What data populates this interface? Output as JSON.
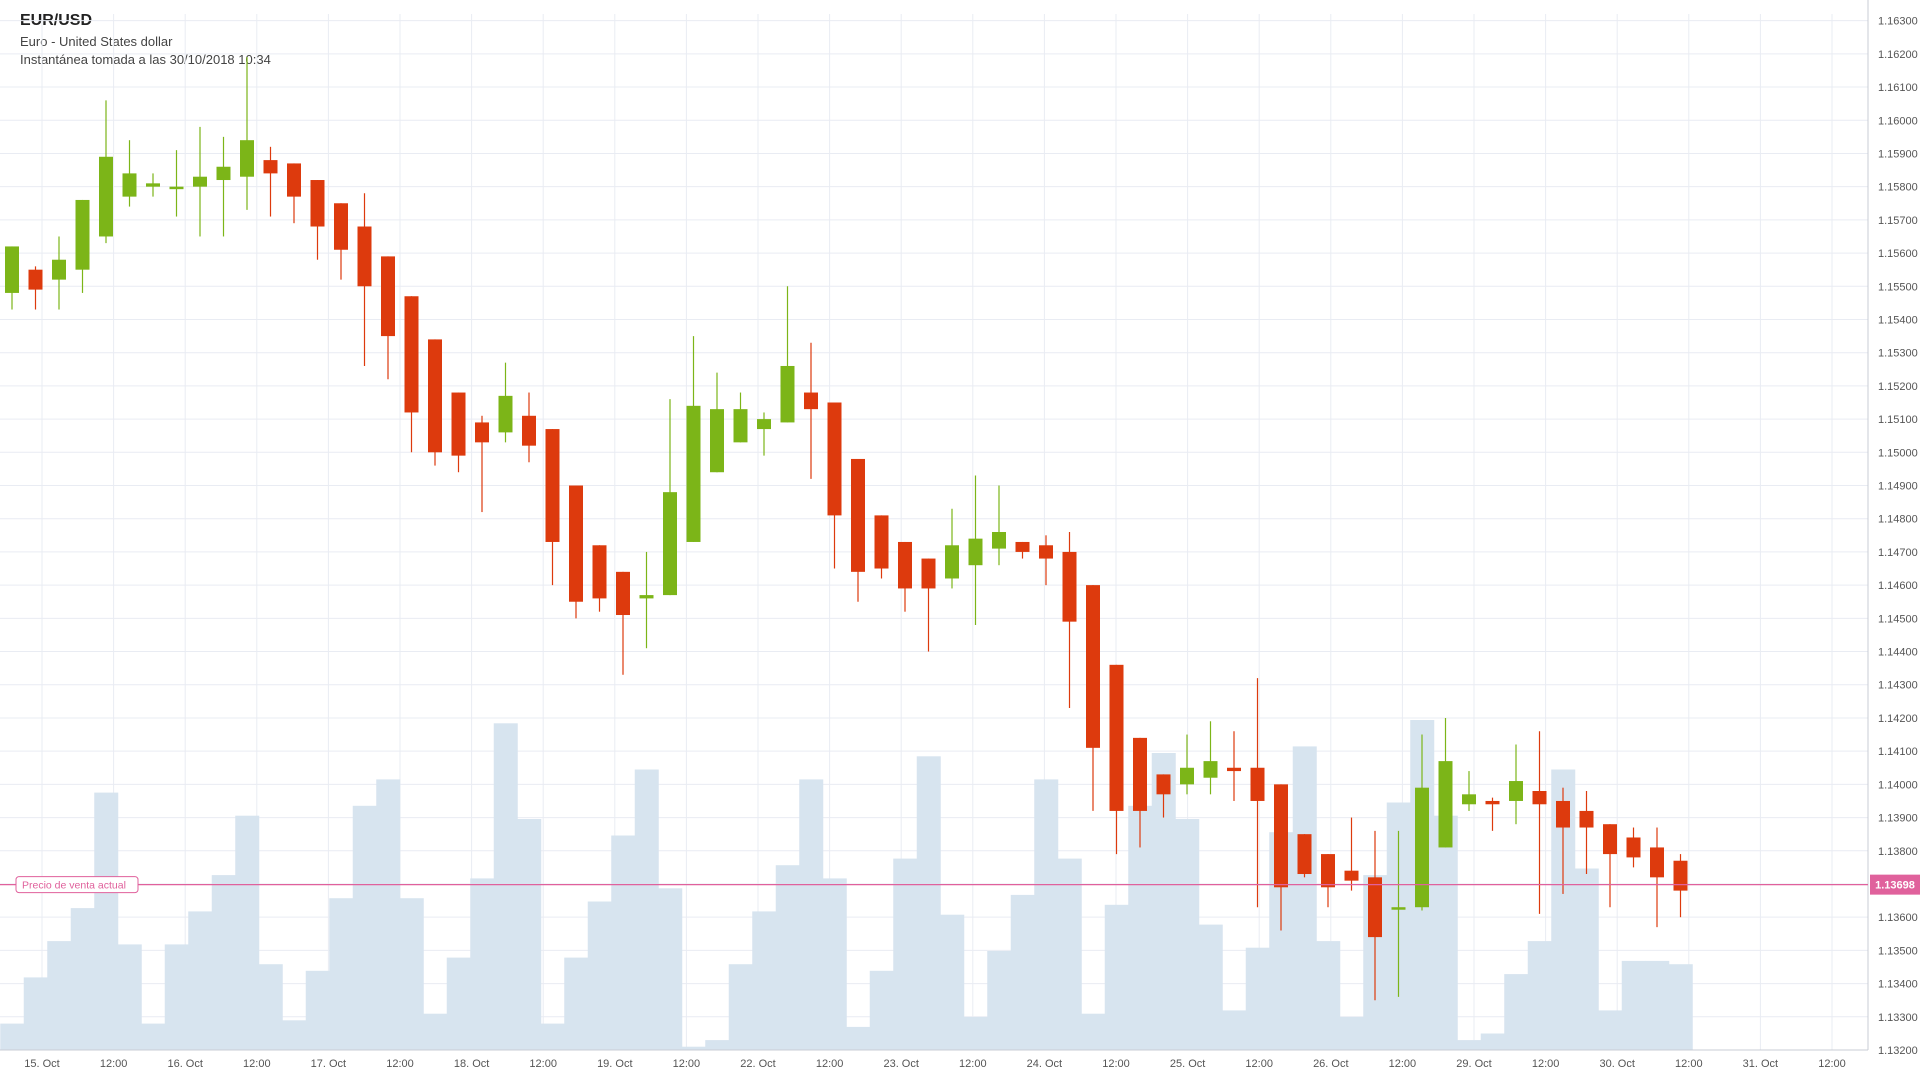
{
  "header": {
    "symbol": "EUR/USD",
    "name": "Euro - United States dollar",
    "snapshot": "Instantánea tomada a las 30/10/2018 10:34"
  },
  "colors": {
    "up": "#7cb518",
    "down": "#dd3a0d",
    "volume": "#d7e4ef",
    "grid": "#e9ecf3",
    "price_line": "#e0619c",
    "axis_text": "#555555"
  },
  "chart_data": {
    "type": "candlestick",
    "instrument": "EUR/USD",
    "ylim": [
      1.132,
      1.1632
    ],
    "y_ticks": [
      "1.16300",
      "1.16200",
      "1.16100",
      "1.16000",
      "1.15900",
      "1.15800",
      "1.15700",
      "1.15600",
      "1.15500",
      "1.15400",
      "1.15300",
      "1.15200",
      "1.15100",
      "1.15000",
      "1.14900",
      "1.14800",
      "1.14700",
      "1.14600",
      "1.14500",
      "1.14400",
      "1.14300",
      "1.14200",
      "1.14100",
      "1.14000",
      "1.13900",
      "1.13800",
      "1.13700",
      "1.13600",
      "1.13500",
      "1.13400",
      "1.13300",
      "1.13200"
    ],
    "x_ticks": [
      "15. Oct",
      "12:00",
      "16. Oct",
      "12:00",
      "17. Oct",
      "12:00",
      "18. Oct",
      "12:00",
      "19. Oct",
      "12:00",
      "22. Oct",
      "12:00",
      "23. Oct",
      "12:00",
      "24. Oct",
      "12:00",
      "25. Oct",
      "12:00",
      "26. Oct",
      "12:00",
      "29. Oct",
      "12:00",
      "30. Oct",
      "12:00",
      "31. Oct",
      "12:00"
    ],
    "current_price": {
      "label": "Precio de venta actual",
      "value": 1.13698,
      "text": "1.13698"
    },
    "grid": true,
    "candles": [
      {
        "o": 1.1548,
        "h": 1.1562,
        "l": 1.1543,
        "c": 1.1562
      },
      {
        "o": 1.1555,
        "h": 1.1556,
        "l": 1.1543,
        "c": 1.1549
      },
      {
        "o": 1.1552,
        "h": 1.1565,
        "l": 1.1543,
        "c": 1.1558
      },
      {
        "o": 1.1555,
        "h": 1.1576,
        "l": 1.1548,
        "c": 1.1576
      },
      {
        "o": 1.1565,
        "h": 1.1606,
        "l": 1.1563,
        "c": 1.1589
      },
      {
        "o": 1.1577,
        "h": 1.1594,
        "l": 1.1574,
        "c": 1.1584
      },
      {
        "o": 1.158,
        "h": 1.1584,
        "l": 1.1577,
        "c": 1.1581
      },
      {
        "o": 1.158,
        "h": 1.1591,
        "l": 1.1571,
        "c": 1.158
      },
      {
        "o": 1.158,
        "h": 1.1598,
        "l": 1.1565,
        "c": 1.1583
      },
      {
        "o": 1.1582,
        "h": 1.1595,
        "l": 1.1565,
        "c": 1.1586
      },
      {
        "o": 1.1583,
        "h": 1.1619,
        "l": 1.1573,
        "c": 1.1594
      },
      {
        "o": 1.1588,
        "h": 1.1592,
        "l": 1.1571,
        "c": 1.1584
      },
      {
        "o": 1.1587,
        "h": 1.1587,
        "l": 1.1569,
        "c": 1.1577
      },
      {
        "o": 1.1582,
        "h": 1.1582,
        "l": 1.1558,
        "c": 1.1568
      },
      {
        "o": 1.1575,
        "h": 1.1575,
        "l": 1.1552,
        "c": 1.1561
      },
      {
        "o": 1.1568,
        "h": 1.1578,
        "l": 1.1526,
        "c": 1.155
      },
      {
        "o": 1.1559,
        "h": 1.1559,
        "l": 1.1522,
        "c": 1.1535
      },
      {
        "o": 1.1547,
        "h": 1.1547,
        "l": 1.15,
        "c": 1.1512
      },
      {
        "o": 1.1534,
        "h": 1.1534,
        "l": 1.1496,
        "c": 1.15
      },
      {
        "o": 1.1518,
        "h": 1.1518,
        "l": 1.1494,
        "c": 1.1499
      },
      {
        "o": 1.1509,
        "h": 1.1511,
        "l": 1.1482,
        "c": 1.1503
      },
      {
        "o": 1.1506,
        "h": 1.1527,
        "l": 1.1503,
        "c": 1.1517
      },
      {
        "o": 1.1511,
        "h": 1.1518,
        "l": 1.1497,
        "c": 1.1502
      },
      {
        "o": 1.1507,
        "h": 1.1507,
        "l": 1.146,
        "c": 1.1473
      },
      {
        "o": 1.149,
        "h": 1.149,
        "l": 1.145,
        "c": 1.1455
      },
      {
        "o": 1.1472,
        "h": 1.1472,
        "l": 1.1452,
        "c": 1.1456
      },
      {
        "o": 1.1464,
        "h": 1.1464,
        "l": 1.1433,
        "c": 1.1451
      },
      {
        "o": 1.1456,
        "h": 1.147,
        "l": 1.1441,
        "c": 1.1457
      },
      {
        "o": 1.1457,
        "h": 1.1516,
        "l": 1.1457,
        "c": 1.1488
      },
      {
        "o": 1.1473,
        "h": 1.1535,
        "l": 1.1473,
        "c": 1.1514
      },
      {
        "o": 1.1494,
        "h": 1.1524,
        "l": 1.1494,
        "c": 1.1513
      },
      {
        "o": 1.1503,
        "h": 1.1518,
        "l": 1.1503,
        "c": 1.1513
      },
      {
        "o": 1.1507,
        "h": 1.1512,
        "l": 1.1499,
        "c": 1.151
      },
      {
        "o": 1.1509,
        "h": 1.155,
        "l": 1.1509,
        "c": 1.1526
      },
      {
        "o": 1.1518,
        "h": 1.1533,
        "l": 1.1492,
        "c": 1.1513
      },
      {
        "o": 1.1515,
        "h": 1.1515,
        "l": 1.1465,
        "c": 1.1481
      },
      {
        "o": 1.1498,
        "h": 1.1498,
        "l": 1.1455,
        "c": 1.1464
      },
      {
        "o": 1.1481,
        "h": 1.1481,
        "l": 1.1462,
        "c": 1.1465
      },
      {
        "o": 1.1473,
        "h": 1.1473,
        "l": 1.1452,
        "c": 1.1459
      },
      {
        "o": 1.1468,
        "h": 1.1468,
        "l": 1.144,
        "c": 1.1459
      },
      {
        "o": 1.1462,
        "h": 1.1483,
        "l": 1.1459,
        "c": 1.1472
      },
      {
        "o": 1.1466,
        "h": 1.1493,
        "l": 1.1448,
        "c": 1.1474
      },
      {
        "o": 1.1471,
        "h": 1.149,
        "l": 1.1466,
        "c": 1.1476
      },
      {
        "o": 1.1473,
        "h": 1.1473,
        "l": 1.1468,
        "c": 1.147
      },
      {
        "o": 1.1472,
        "h": 1.1475,
        "l": 1.146,
        "c": 1.1468
      },
      {
        "o": 1.147,
        "h": 1.1476,
        "l": 1.1423,
        "c": 1.1449
      },
      {
        "o": 1.146,
        "h": 1.146,
        "l": 1.1392,
        "c": 1.1411
      },
      {
        "o": 1.1436,
        "h": 1.1436,
        "l": 1.1379,
        "c": 1.1392
      },
      {
        "o": 1.1414,
        "h": 1.1414,
        "l": 1.1381,
        "c": 1.1392
      },
      {
        "o": 1.1403,
        "h": 1.1403,
        "l": 1.139,
        "c": 1.1397
      },
      {
        "o": 1.14,
        "h": 1.1415,
        "l": 1.1397,
        "c": 1.1405
      },
      {
        "o": 1.1402,
        "h": 1.1419,
        "l": 1.1397,
        "c": 1.1407
      },
      {
        "o": 1.1405,
        "h": 1.1416,
        "l": 1.1395,
        "c": 1.1404
      },
      {
        "o": 1.1405,
        "h": 1.1432,
        "l": 1.1363,
        "c": 1.1395
      },
      {
        "o": 1.14,
        "h": 1.14,
        "l": 1.1356,
        "c": 1.1369
      },
      {
        "o": 1.1385,
        "h": 1.1385,
        "l": 1.1372,
        "c": 1.1373
      },
      {
        "o": 1.1379,
        "h": 1.1379,
        "l": 1.1363,
        "c": 1.1369
      },
      {
        "o": 1.1374,
        "h": 1.139,
        "l": 1.1368,
        "c": 1.1371
      },
      {
        "o": 1.1372,
        "h": 1.1386,
        "l": 1.1335,
        "c": 1.1354
      },
      {
        "o": 1.1363,
        "h": 1.1386,
        "l": 1.1336,
        "c": 1.1363
      },
      {
        "o": 1.1363,
        "h": 1.1415,
        "l": 1.1362,
        "c": 1.1399
      },
      {
        "o": 1.1381,
        "h": 1.142,
        "l": 1.1381,
        "c": 1.1407
      },
      {
        "o": 1.1394,
        "h": 1.1404,
        "l": 1.1392,
        "c": 1.1397
      },
      {
        "o": 1.1395,
        "h": 1.1396,
        "l": 1.1386,
        "c": 1.1394
      },
      {
        "o": 1.1395,
        "h": 1.1412,
        "l": 1.1388,
        "c": 1.1401
      },
      {
        "o": 1.1398,
        "h": 1.1416,
        "l": 1.1361,
        "c": 1.1394
      },
      {
        "o": 1.1395,
        "h": 1.1399,
        "l": 1.1367,
        "c": 1.1387
      },
      {
        "o": 1.1392,
        "h": 1.1398,
        "l": 1.1373,
        "c": 1.1387
      },
      {
        "o": 1.1388,
        "h": 1.1388,
        "l": 1.1363,
        "c": 1.1379
      },
      {
        "o": 1.1384,
        "h": 1.1387,
        "l": 1.1375,
        "c": 1.1378
      },
      {
        "o": 1.1381,
        "h": 1.1387,
        "l": 1.1357,
        "c": 1.1372
      },
      {
        "o": 1.1377,
        "h": 1.1379,
        "l": 1.136,
        "c": 1.1368
      }
    ],
    "volume_levels": [
      0.08,
      0.22,
      0.33,
      0.43,
      0.78,
      0.32,
      0.08,
      0.32,
      0.42,
      0.53,
      0.71,
      0.26,
      0.09,
      0.24,
      0.46,
      0.74,
      0.82,
      0.46,
      0.11,
      0.28,
      0.52,
      0.99,
      0.7,
      0.08,
      0.28,
      0.45,
      0.65,
      0.85,
      0.49,
      0.01,
      0.03,
      0.26,
      0.42,
      0.56,
      0.82,
      0.52,
      0.07,
      0.24,
      0.58,
      0.89,
      0.41,
      0.1,
      0.3,
      0.47,
      0.82,
      0.58,
      0.11,
      0.44,
      0.74,
      0.9,
      0.7,
      0.38,
      0.12,
      0.31,
      0.66,
      0.92,
      0.33,
      0.1,
      0.53,
      0.75,
      1.0,
      0.71,
      0.03,
      0.05,
      0.23,
      0.33,
      0.85,
      0.55,
      0.12,
      0.27,
      0.27,
      0.26
    ]
  }
}
